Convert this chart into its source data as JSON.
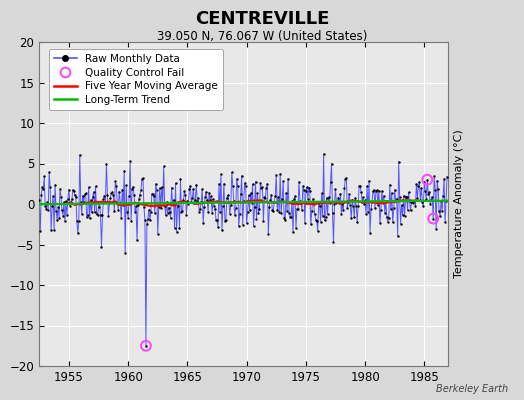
{
  "title": "CENTREVILLE",
  "subtitle": "39.050 N, 76.067 W (United States)",
  "ylabel": "Temperature Anomaly (°C)",
  "credit": "Berkeley Earth",
  "xlim": [
    1952.5,
    1987.0
  ],
  "ylim": [
    -20,
    20
  ],
  "yticks": [
    -20,
    -15,
    -10,
    -5,
    0,
    5,
    10,
    15,
    20
  ],
  "xticks": [
    1955,
    1960,
    1965,
    1970,
    1975,
    1980,
    1985
  ],
  "outer_bg": "#d8d8d8",
  "plot_bg": "#e8e8e8",
  "grid_color": "#ffffff",
  "raw_color": "#5555ff",
  "dot_color": "#000000",
  "ma_color": "#ff0000",
  "trend_color": "#00bb00",
  "qc_color": "#ff44ff",
  "start_year": 1952.5,
  "n_months": 414
}
